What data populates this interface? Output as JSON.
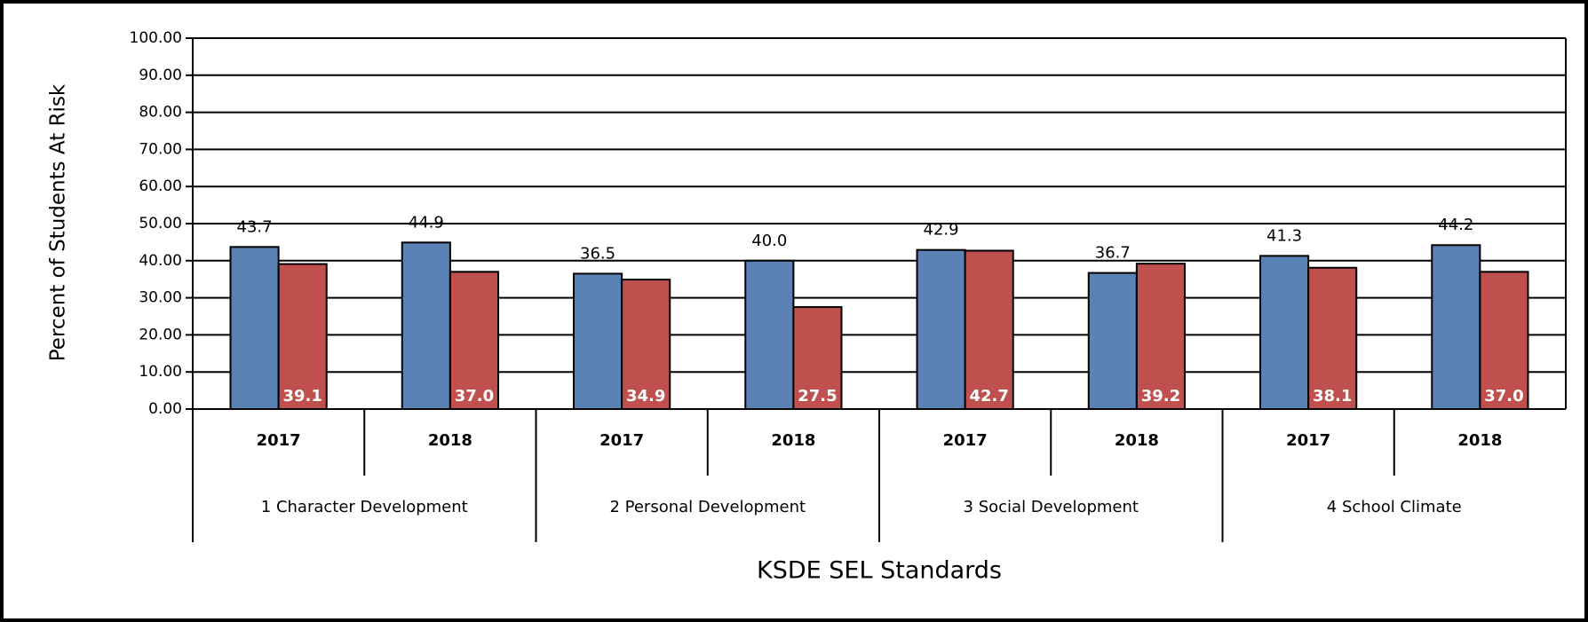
{
  "chart_data": {
    "type": "bar",
    "x_label": "KSDE SEL Standards",
    "y_label": "Percent of Students At Risk",
    "categories": [
      "2017",
      "2018",
      "2017",
      "2018",
      "2017",
      "2018",
      "2017",
      "2018"
    ],
    "groups": [
      "1 Character Development",
      "2 Personal Development",
      "3 Social Development",
      "4 School Climate"
    ],
    "series": [
      {
        "color": "#5b82b5",
        "values": [
          43.7,
          44.9,
          36.5,
          40.0,
          42.9,
          36.7,
          41.3,
          44.2
        ],
        "value_labels": [
          "43.7",
          "44.9",
          "36.5",
          "40.0",
          "42.9",
          "36.7",
          "41.3",
          "44.2"
        ]
      },
      {
        "color": "#c0504d",
        "values": [
          39.1,
          37.0,
          34.9,
          27.5,
          42.7,
          39.2,
          38.1,
          37.0
        ],
        "value_labels": [
          "39.1",
          "37.0",
          "34.9",
          "27.5",
          "42.7",
          "39.2",
          "38.1",
          "37.0"
        ]
      }
    ],
    "ylim": [
      0,
      100
    ],
    "yticks": [
      {
        "value": 0,
        "label": "0.00"
      },
      {
        "value": 10,
        "label": "10.00"
      },
      {
        "value": 20,
        "label": "20.00"
      },
      {
        "value": 30,
        "label": "30.00"
      },
      {
        "value": 40,
        "label": "40.00"
      },
      {
        "value": 50,
        "label": "50.00"
      },
      {
        "value": 60,
        "label": "60.00"
      },
      {
        "value": 70,
        "label": "70.00"
      },
      {
        "value": 80,
        "label": "80.00"
      },
      {
        "value": 90,
        "label": "90.00"
      },
      {
        "value": 100,
        "label": "100.00"
      }
    ],
    "grid": true
  }
}
